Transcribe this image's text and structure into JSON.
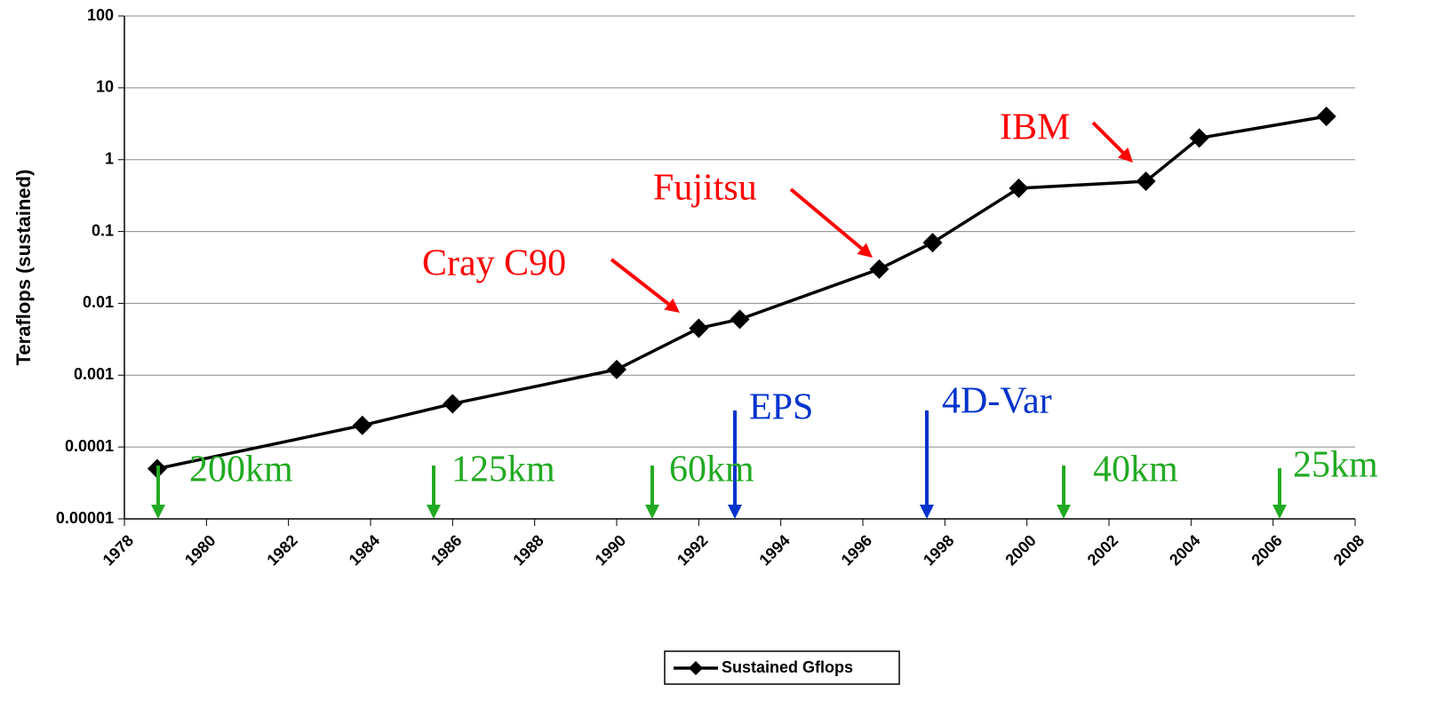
{
  "chart_data": {
    "type": "line",
    "y_label": "Teraflops (sustained)",
    "ylog": true,
    "grid": true,
    "ylim": [
      1e-05,
      100
    ],
    "yticks": [
      1e-05,
      0.0001,
      0.001,
      0.01,
      0.1,
      1,
      10,
      100
    ],
    "xlim": [
      1978,
      2008
    ],
    "xticks": [
      1978,
      1980,
      1982,
      1984,
      1986,
      1988,
      1990,
      1992,
      1994,
      1996,
      1998,
      2000,
      2002,
      2004,
      2006,
      2008
    ],
    "x": [
      1978.8,
      1983.8,
      1986.0,
      1990.0,
      1992.0,
      1993.0,
      1996.4,
      1997.7,
      1999.8,
      2002.9,
      2004.2,
      2007.3
    ],
    "series": [
      {
        "name": "Sustained Gflops",
        "color": "#000000",
        "values": [
          5e-05,
          0.0002,
          0.0004,
          0.0012,
          0.0045,
          0.006,
          0.03,
          0.07,
          0.4,
          0.5,
          2,
          4
        ]
      }
    ],
    "legend": "bottom",
    "annotations": [
      {
        "text": "Cray C90",
        "color": "#ff0000"
      },
      {
        "text": "Fujitsu",
        "color": "#ff0000"
      },
      {
        "text": "IBM",
        "color": "#ff0000"
      },
      {
        "text": "EPS",
        "color": "#0033cc"
      },
      {
        "text": "4D-Var",
        "color": "#0033cc"
      },
      {
        "text": "200km",
        "color": "#22aa22"
      },
      {
        "text": "125km",
        "color": "#22aa22"
      },
      {
        "text": "60km",
        "color": "#22aa22"
      },
      {
        "text": "40km",
        "color": "#22aa22"
      },
      {
        "text": "25km",
        "color": "#22aa22"
      }
    ]
  }
}
